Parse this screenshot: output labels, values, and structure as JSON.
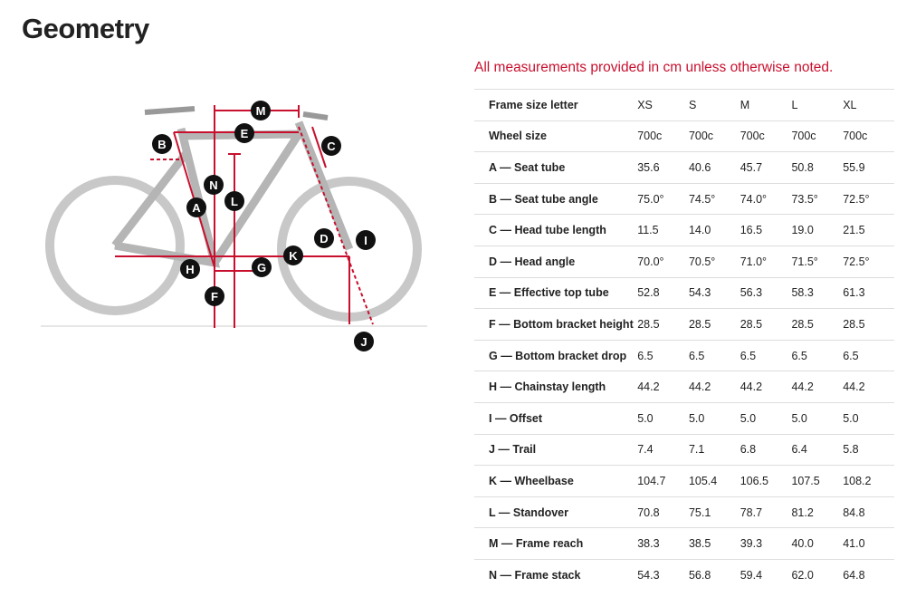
{
  "header": {
    "title": "Geometry"
  },
  "note": "All measurements provided in cm unless otherwise noted.",
  "diagram": {
    "labels": [
      "M",
      "E",
      "B",
      "C",
      "N",
      "L",
      "A",
      "D",
      "I",
      "K",
      "H",
      "G",
      "F",
      "J"
    ]
  },
  "table": {
    "header": [
      "Frame size letter",
      "XS",
      "S",
      "M",
      "L",
      "XL"
    ],
    "rows": [
      [
        "Wheel size",
        "700c",
        "700c",
        "700c",
        "700c",
        "700c"
      ],
      [
        "A — Seat tube",
        "35.6",
        "40.6",
        "45.7",
        "50.8",
        "55.9"
      ],
      [
        "B — Seat tube angle",
        "75.0°",
        "74.5°",
        "74.0°",
        "73.5°",
        "72.5°"
      ],
      [
        "C — Head tube length",
        "11.5",
        "14.0",
        "16.5",
        "19.0",
        "21.5"
      ],
      [
        "D — Head angle",
        "70.0°",
        "70.5°",
        "71.0°",
        "71.5°",
        "72.5°"
      ],
      [
        "E — Effective top tube",
        "52.8",
        "54.3",
        "56.3",
        "58.3",
        "61.3"
      ],
      [
        "F — Bottom bracket height",
        "28.5",
        "28.5",
        "28.5",
        "28.5",
        "28.5"
      ],
      [
        "G — Bottom bracket drop",
        "6.5",
        "6.5",
        "6.5",
        "6.5",
        "6.5"
      ],
      [
        "H — Chainstay length",
        "44.2",
        "44.2",
        "44.2",
        "44.2",
        "44.2"
      ],
      [
        "I — Offset",
        "5.0",
        "5.0",
        "5.0",
        "5.0",
        "5.0"
      ],
      [
        "J — Trail",
        "7.4",
        "7.1",
        "6.8",
        "6.4",
        "5.8"
      ],
      [
        "K — Wheelbase",
        "104.7",
        "105.4",
        "106.5",
        "107.5",
        "108.2"
      ],
      [
        "L — Standover",
        "70.8",
        "75.1",
        "78.7",
        "81.2",
        "84.8"
      ],
      [
        "M — Frame reach",
        "38.3",
        "38.5",
        "39.3",
        "40.0",
        "41.0"
      ],
      [
        "N — Frame stack",
        "54.3",
        "56.8",
        "59.4",
        "62.0",
        "64.8"
      ]
    ]
  }
}
